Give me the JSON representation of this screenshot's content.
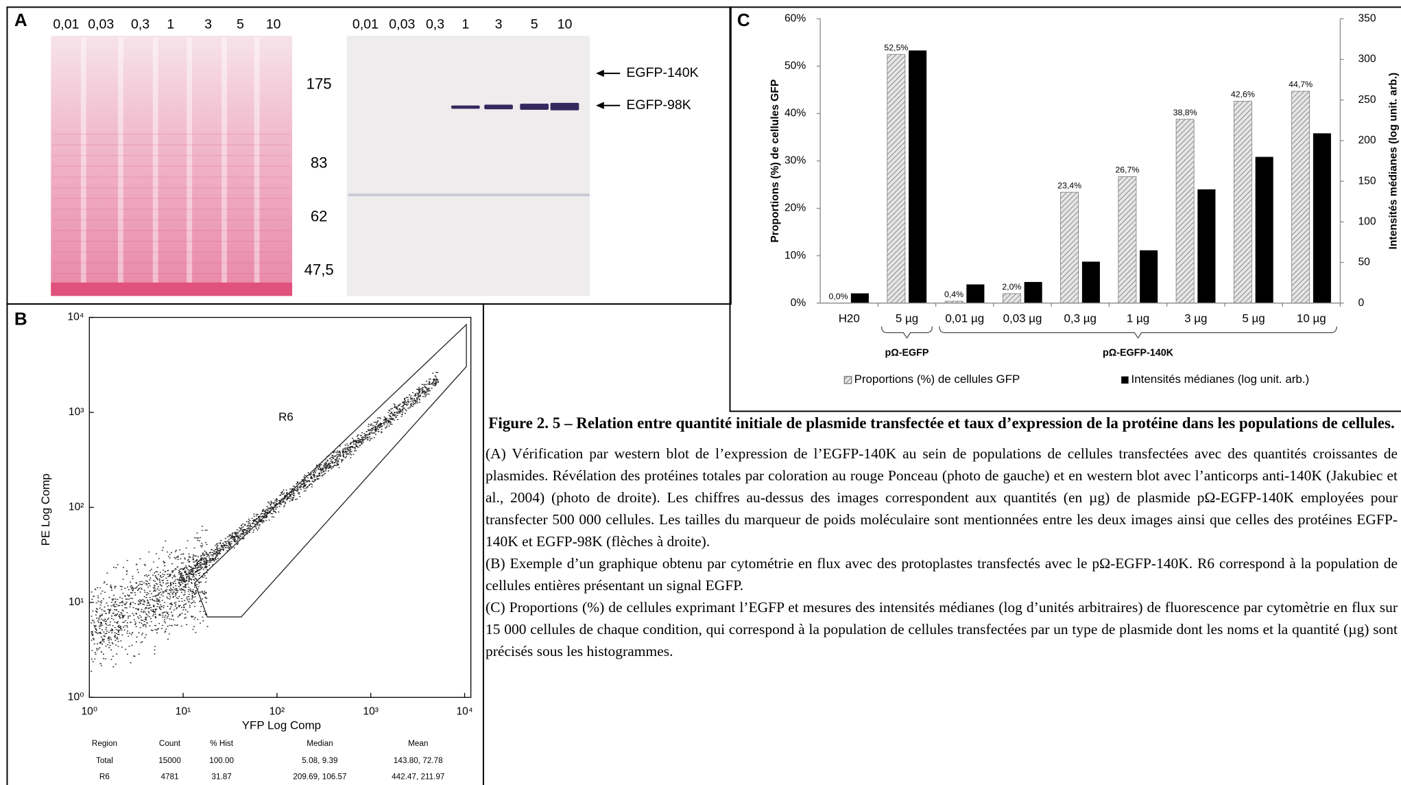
{
  "panels": {
    "a": "A",
    "b": "B",
    "c": "C"
  },
  "blot": {
    "left_lanes": [
      "0,01",
      "0,03",
      "0,3",
      "1",
      "3",
      "5",
      "10"
    ],
    "right_lanes": [
      "0,01",
      "0,03",
      "0,3",
      "1",
      "3",
      "5",
      "10"
    ],
    "markers": [
      "175",
      "83",
      "62",
      "47,5"
    ],
    "arrows": [
      "EGFP-140K",
      "EGFP-98K"
    ]
  },
  "chart_data": [
    {
      "type": "bar",
      "ylabel": "Proportions (%) de cellules GFP",
      "y2label": "Intensités médianes (log unit. arb.)",
      "categories": [
        "H20",
        "5 µg",
        "0,01 µg",
        "0,03 µg",
        "0,3 µg",
        "1 µg",
        "3 µg",
        "5 µg",
        "10 µg"
      ],
      "category_groups": [
        null,
        "pΩ-EGFP",
        "pΩ-EGFP-140K",
        "pΩ-EGFP-140K",
        "pΩ-EGFP-140K",
        "pΩ-EGFP-140K",
        "pΩ-EGFP-140K",
        "pΩ-EGFP-140K",
        "pΩ-EGFP-140K"
      ],
      "ylim": [
        0,
        60
      ],
      "yticks": [
        {
          "value": 0,
          "label": "0%"
        },
        {
          "value": 10,
          "label": "10%"
        },
        {
          "value": 20,
          "label": "20%"
        },
        {
          "value": 30,
          "label": "30%"
        },
        {
          "value": 40,
          "label": "40%"
        },
        {
          "value": 50,
          "label": "50%"
        },
        {
          "value": 60,
          "label": "60%"
        }
      ],
      "y2lim": [
        0,
        350
      ],
      "y2ticks": [
        0,
        50,
        100,
        150,
        200,
        250,
        300,
        350
      ],
      "series": [
        {
          "name": "Proportions (%) de cellules GFP",
          "color": "#8c8c8c",
          "pattern": "diagonal-hatch",
          "values": [
            0,
            52.5,
            0.4,
            2.0,
            23.4,
            26.7,
            38.8,
            42.6,
            44.7
          ],
          "value_labels": [
            "0,0%",
            "52,5%",
            "0,4%",
            "2,0%",
            "23,4%",
            "26,7%",
            "38,8%",
            "42,6%",
            "44,7%"
          ]
        },
        {
          "name": "Intensités médianes (log unit. arb.)",
          "color": "#000000",
          "axis": "y2",
          "values": [
            12,
            311,
            23,
            26,
            51,
            65,
            140,
            180,
            209
          ]
        }
      ]
    },
    {
      "type": "scatter",
      "xlabel": "YFP Log Comp",
      "ylabel": "PE Log Comp",
      "xscale": "log",
      "yscale": "log",
      "xlim": [
        1,
        10000
      ],
      "ylim": [
        1,
        10000
      ],
      "xticks": [
        {
          "value": 1,
          "label": "10⁰"
        },
        {
          "value": 10,
          "label": "10¹"
        },
        {
          "value": 100,
          "label": "10²"
        },
        {
          "value": 1000,
          "label": "10³"
        },
        {
          "value": 10000,
          "label": "10⁴"
        }
      ],
      "yticks": [
        {
          "value": 1,
          "label": "10⁰"
        },
        {
          "value": 10,
          "label": "10¹"
        },
        {
          "value": 100,
          "label": "10²"
        },
        {
          "value": 1000,
          "label": "10³"
        },
        {
          "value": 10000,
          "label": "10⁴"
        }
      ],
      "annotations": [
        "R6"
      ]
    }
  ],
  "flow_table": {
    "header": [
      "Region",
      "Count",
      "% Hist",
      "Median",
      "Mean"
    ],
    "rows": [
      [
        "Total",
        "15000",
        "100.00",
        "5.08, 9.39",
        "143.80, 72.78"
      ],
      [
        "R6",
        "4781",
        "31.87",
        "209.69, 106.57",
        "442.47, 211.97"
      ]
    ]
  },
  "caption": {
    "title": "Figure 2. 5 – Relation entre quantité initiale de plasmide transfectée et taux d’expression de la protéine dans les populations de cellules.",
    "paragraphs": [
      "(A) Vérification par western blot de l’expression de l’EGFP-140K au sein de populations de cellules transfectées avec des quantités croissantes de plasmides. Révélation des protéines totales par coloration au rouge Ponceau (photo de gauche) et en western blot avec l’anticorps anti-140K (Jakubiec et al., 2004) (photo de droite). Les chiffres au-dessus des images correspondent aux quantités (en µg) de plasmide pΩ-EGFP-140K employées pour transfecter 500 000 cellules. Les tailles du marqueur de poids moléculaire sont mentionnées entre les deux images ainsi que celles des protéines EGFP-140K et EGFP-98K (flèches à droite).",
      "(B) Exemple d’un graphique obtenu par cytométrie en flux avec des protoplastes transfectés avec le pΩ-EGFP-140K. R6 correspond à la population de cellules entières présentant un signal EGFP.",
      "(C) Proportions (%) de cellules exprimant l’EGFP et mesures des intensités médianes (log d’unités arbitraires) de fluorescence par cytomètrie en flux sur 15 000 cellules de chaque condition, qui correspond à la population de cellules transfectées par un type de plasmide dont les noms et la quantité (µg) sont précisés sous les histogrammes."
    ]
  }
}
